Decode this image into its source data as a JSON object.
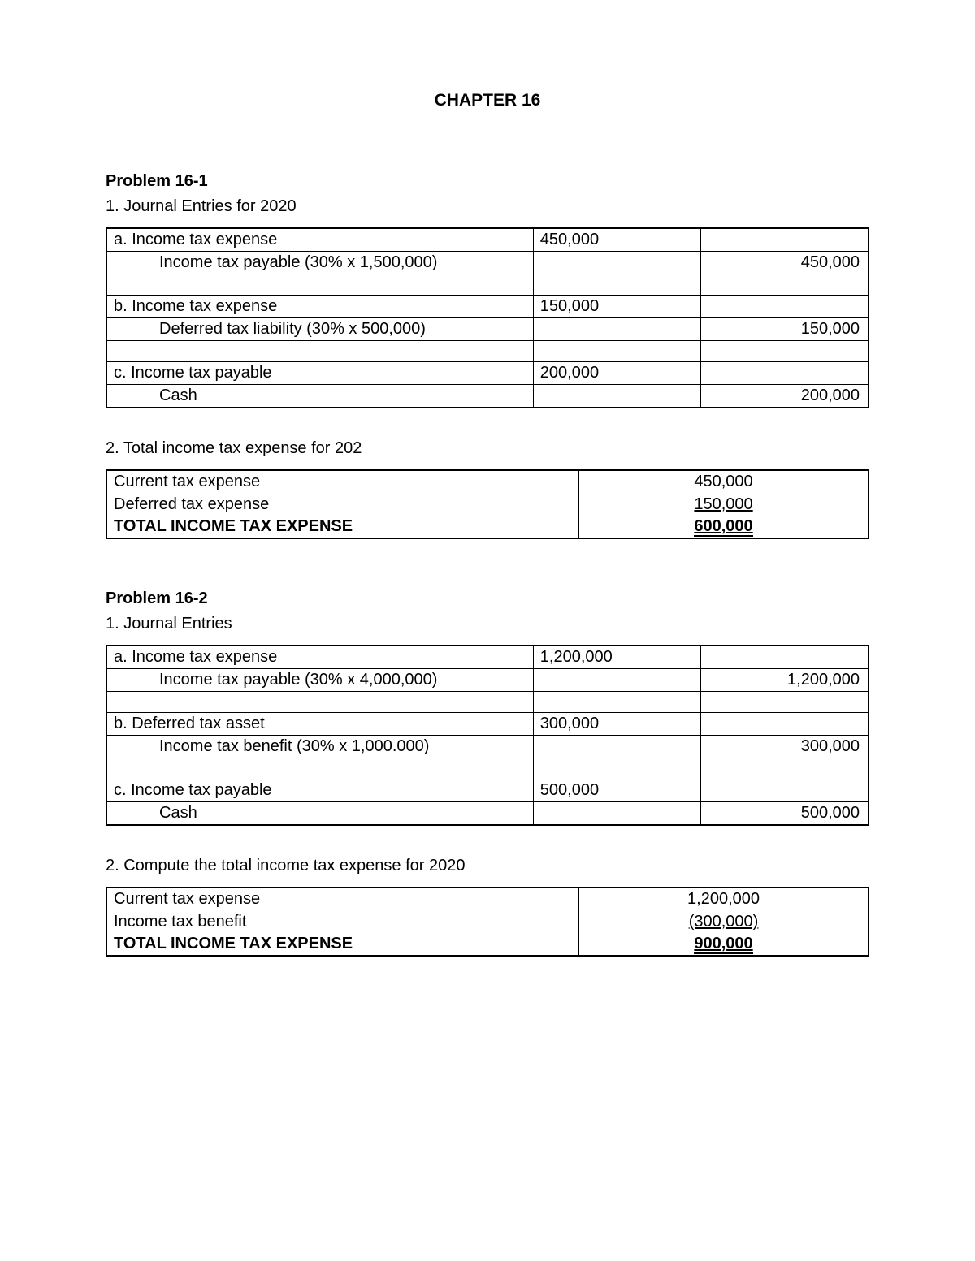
{
  "chapter_title": "CHAPTER 16",
  "p1": {
    "heading": "Problem 16-1",
    "sub1": "1.  Journal Entries for 2020",
    "rows": {
      "a_desc": "a. Income tax expense",
      "a_debit": "450,000",
      "a2_desc": "Income tax payable (30% x 1,500,000)",
      "a2_credit": "450,000",
      "b_desc": "b. Income tax expense",
      "b_debit": "150,000",
      "b2_desc": "Deferred tax liability (30% x 500,000)",
      "b2_credit": "150,000",
      "c_desc": "c. Income tax payable",
      "c_debit": "200,000",
      "c2_desc": "Cash",
      "c2_credit": "200,000"
    },
    "sub2": "2. Total income tax expense for 202",
    "summary": {
      "r1_label": "Current tax expense",
      "r1_value": "450,000",
      "r2_label": "Deferred tax expense",
      "r2_value": "150,000",
      "r3_label": "TOTAL INCOME TAX EXPENSE",
      "r3_value": "600,000"
    }
  },
  "p2": {
    "heading": "Problem 16-2",
    "sub1": "1. Journal Entries",
    "rows": {
      "a_desc": "a. Income tax expense",
      "a_debit": "1,200,000",
      "a2_desc": "Income tax payable (30% x 4,000,000)",
      "a2_credit": "1,200,000",
      "b_desc": "b. Deferred tax asset",
      "b_debit": "300,000",
      "b2_desc": "Income tax benefit (30% x 1,000.000)",
      "b2_credit": "300,000",
      "c_desc": "c. Income tax payable",
      "c_debit": "500,000",
      "c2_desc": "Cash",
      "c2_credit": "500,000"
    },
    "sub2": "2. Compute the total income tax expense for 2020",
    "summary": {
      "r1_label": "Current tax expense",
      "r1_value": "1,200,000",
      "r2_label": "Income tax benefit",
      "r2_value": "(300,000)",
      "r3_label": "TOTAL INCOME TAX EXPENSE",
      "r3_value": "900,000"
    }
  },
  "style": {
    "text_color": "#000000",
    "bg_color": "#ffffff",
    "border_color": "#000000",
    "font_size_body": 20,
    "font_size_title": 21
  }
}
